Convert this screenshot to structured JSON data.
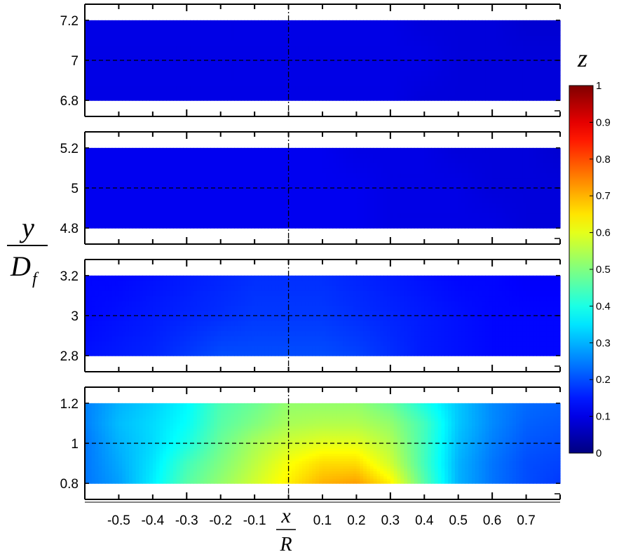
{
  "chart_data": {
    "type": "heatmap",
    "xlabel": {
      "numerator": "x",
      "denominator": "R"
    },
    "ylabel": {
      "numerator": "y",
      "denominator": "D",
      "subscript": "f"
    },
    "colorbar_label": "z",
    "x_ticks": [
      "-0.5",
      "-0.4",
      "-0.3",
      "-0.2",
      "-0.1",
      "0.1",
      "0.2",
      "0.3",
      "0.4",
      "0.5",
      "0.6",
      "0.7"
    ],
    "x_tick_values": [
      -0.5,
      -0.4,
      -0.3,
      -0.2,
      -0.1,
      0.1,
      0.2,
      0.3,
      0.4,
      0.5,
      0.6,
      0.7
    ],
    "xlim": [
      -0.6,
      0.8
    ],
    "colorbar": {
      "range": [
        0,
        1
      ],
      "ticks": [
        "0",
        "0.1",
        "0.2",
        "0.3",
        "0.4",
        "0.5",
        "0.6",
        "0.7",
        "0.8",
        "0.9",
        "1"
      ],
      "tick_values": [
        0,
        0.1,
        0.2,
        0.3,
        0.4,
        0.5,
        0.6,
        0.7,
        0.8,
        0.9,
        1.0
      ],
      "colormap": "jet"
    },
    "x_samples": [
      -0.6,
      -0.5,
      -0.4,
      -0.3,
      -0.2,
      -0.1,
      0.0,
      0.1,
      0.2,
      0.3,
      0.4,
      0.5,
      0.6,
      0.7,
      0.8
    ],
    "panels": [
      {
        "ylim": [
          6.72,
          7.28
        ],
        "data_ylim": [
          6.8,
          7.2
        ],
        "y_center": 7,
        "y_ticks": [
          "6.8",
          "7",
          "7.2"
        ],
        "y_tick_values": [
          6.8,
          7.0,
          7.2
        ],
        "rows_y": [
          6.8,
          7.0,
          7.2
        ],
        "z": [
          [
            0.1,
            0.1,
            0.1,
            0.1,
            0.1,
            0.1,
            0.1,
            0.1,
            0.1,
            0.1,
            0.09,
            0.09,
            0.09,
            0.09,
            0.09
          ],
          [
            0.1,
            0.1,
            0.1,
            0.1,
            0.1,
            0.1,
            0.1,
            0.1,
            0.1,
            0.1,
            0.1,
            0.09,
            0.09,
            0.09,
            0.09
          ],
          [
            0.1,
            0.1,
            0.1,
            0.1,
            0.1,
            0.1,
            0.1,
            0.1,
            0.1,
            0.1,
            0.09,
            0.09,
            0.09,
            0.08,
            0.08
          ]
        ]
      },
      {
        "ylim": [
          4.72,
          5.28
        ],
        "data_ylim": [
          4.8,
          5.2
        ],
        "y_center": 5,
        "y_ticks": [
          "4.8",
          "5",
          "5.2"
        ],
        "y_tick_values": [
          4.8,
          5.0,
          5.2
        ],
        "rows_y": [
          4.8,
          5.0,
          5.2
        ],
        "z": [
          [
            0.11,
            0.11,
            0.11,
            0.11,
            0.11,
            0.11,
            0.11,
            0.11,
            0.11,
            0.1,
            0.1,
            0.1,
            0.1,
            0.09,
            0.09
          ],
          [
            0.11,
            0.11,
            0.11,
            0.11,
            0.11,
            0.11,
            0.11,
            0.11,
            0.11,
            0.1,
            0.1,
            0.1,
            0.09,
            0.09,
            0.09
          ],
          [
            0.11,
            0.11,
            0.11,
            0.11,
            0.11,
            0.11,
            0.11,
            0.11,
            0.1,
            0.1,
            0.1,
            0.09,
            0.09,
            0.09,
            0.08
          ]
        ]
      },
      {
        "ylim": [
          2.72,
          3.28
        ],
        "data_ylim": [
          2.8,
          3.2
        ],
        "y_center": 3,
        "y_ticks": [
          "2.8",
          "3",
          "3.2"
        ],
        "y_tick_values": [
          2.8,
          3.0,
          3.2
        ],
        "rows_y": [
          2.8,
          3.0,
          3.2
        ],
        "z": [
          [
            0.14,
            0.15,
            0.16,
            0.18,
            0.2,
            0.2,
            0.2,
            0.2,
            0.19,
            0.17,
            0.15,
            0.14,
            0.13,
            0.13,
            0.13
          ],
          [
            0.13,
            0.14,
            0.15,
            0.16,
            0.17,
            0.18,
            0.18,
            0.18,
            0.17,
            0.16,
            0.15,
            0.14,
            0.13,
            0.13,
            0.13
          ],
          [
            0.13,
            0.13,
            0.14,
            0.15,
            0.16,
            0.17,
            0.17,
            0.17,
            0.16,
            0.15,
            0.14,
            0.13,
            0.13,
            0.12,
            0.12
          ]
        ]
      },
      {
        "ylim": [
          0.72,
          1.28
        ],
        "data_ylim": [
          0.8,
          1.2
        ],
        "y_center": 1,
        "y_ticks": [
          "0.8",
          "1",
          "1.2"
        ],
        "y_tick_values": [
          0.8,
          1.0,
          1.2
        ],
        "rows_y": [
          0.8,
          0.9,
          1.0,
          1.1,
          1.2
        ],
        "z": [
          [
            0.24,
            0.28,
            0.36,
            0.46,
            0.52,
            0.58,
            0.64,
            0.7,
            0.72,
            0.64,
            0.46,
            0.3,
            0.24,
            0.2,
            0.18
          ],
          [
            0.24,
            0.29,
            0.35,
            0.44,
            0.5,
            0.56,
            0.62,
            0.66,
            0.66,
            0.58,
            0.44,
            0.3,
            0.24,
            0.2,
            0.19
          ],
          [
            0.24,
            0.3,
            0.34,
            0.4,
            0.48,
            0.54,
            0.58,
            0.6,
            0.6,
            0.55,
            0.44,
            0.31,
            0.25,
            0.21,
            0.2
          ],
          [
            0.25,
            0.31,
            0.34,
            0.38,
            0.46,
            0.5,
            0.54,
            0.55,
            0.55,
            0.52,
            0.44,
            0.32,
            0.26,
            0.22,
            0.21
          ],
          [
            0.25,
            0.3,
            0.33,
            0.37,
            0.45,
            0.48,
            0.52,
            0.52,
            0.52,
            0.48,
            0.4,
            0.32,
            0.26,
            0.23,
            0.22
          ]
        ]
      }
    ]
  }
}
